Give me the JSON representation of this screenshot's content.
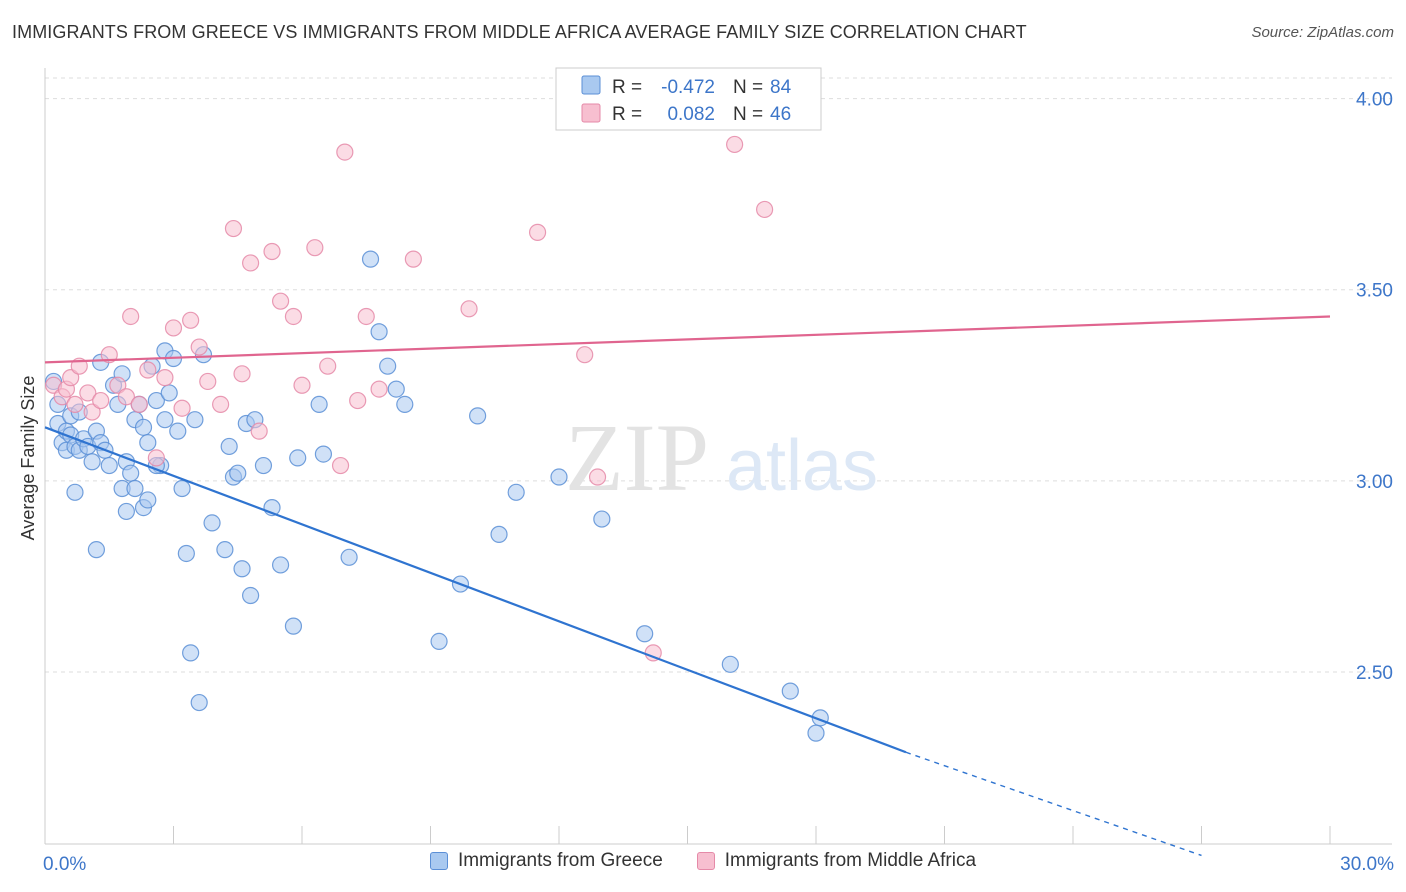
{
  "header": {
    "title": "IMMIGRANTS FROM GREECE VS IMMIGRANTS FROM MIDDLE AFRICA AVERAGE FAMILY SIZE CORRELATION CHART",
    "source": "Source: ZipAtlas.com"
  },
  "watermark": {
    "zip": "ZIP",
    "atlas": "atlas"
  },
  "colors": {
    "blue_fill": "#a9c9f0",
    "blue_stroke": "#5b8fd6",
    "blue_line": "#2f74d0",
    "pink_fill": "#f7bfd0",
    "pink_stroke": "#e58aa8",
    "pink_line": "#e0658f",
    "tick_label": "#3d76c9",
    "grid": "#dddddd"
  },
  "legend_top": {
    "rows": [
      {
        "r_label": "R =",
        "r_value": "-0.472",
        "n_label": "N =",
        "n_value": "84"
      },
      {
        "r_label": "R =",
        "r_value": "0.082",
        "n_label": "N =",
        "n_value": "46"
      }
    ]
  },
  "chart_data": {
    "type": "scatter",
    "title": "IMMIGRANTS FROM GREECE VS IMMIGRANTS FROM MIDDLE AFRICA AVERAGE FAMILY SIZE CORRELATION CHART",
    "xlabel": "",
    "ylabel": "Average Family Size",
    "xlim": [
      0,
      30
    ],
    "ylim": [
      2.05,
      4.08
    ],
    "x_tick_labels": [
      {
        "value": 0,
        "label": "0.0%"
      },
      {
        "value": 30,
        "label": "30.0%"
      }
    ],
    "y_ticks": [
      {
        "value": 2.5,
        "label": "2.50"
      },
      {
        "value": 3.0,
        "label": "3.00"
      },
      {
        "value": 3.5,
        "label": "3.50"
      },
      {
        "value": 4.0,
        "label": "4.00"
      }
    ],
    "grid": true,
    "legend_position": "top-center",
    "series": [
      {
        "name": "Immigrants from Greece",
        "color": "#a9c9f0",
        "R": -0.472,
        "N": 84,
        "trend": {
          "x_start": 0,
          "y_start": 3.14,
          "x_solid_end": 20.1,
          "y_solid_end": 2.29,
          "x_dash_end": 27.0,
          "y_dash_end": 2.02
        },
        "points": [
          [
            0.2,
            3.26
          ],
          [
            0.3,
            3.2
          ],
          [
            0.3,
            3.15
          ],
          [
            0.4,
            3.1
          ],
          [
            0.5,
            3.08
          ],
          [
            0.5,
            3.13
          ],
          [
            0.6,
            3.17
          ],
          [
            0.6,
            3.12
          ],
          [
            0.7,
            3.09
          ],
          [
            0.8,
            3.18
          ],
          [
            0.8,
            3.08
          ],
          [
            0.9,
            3.11
          ],
          [
            1.0,
            3.09
          ],
          [
            1.1,
            3.05
          ],
          [
            1.2,
            3.13
          ],
          [
            1.3,
            3.31
          ],
          [
            1.3,
            3.1
          ],
          [
            1.4,
            3.08
          ],
          [
            1.5,
            3.04
          ],
          [
            1.6,
            3.25
          ],
          [
            1.7,
            3.2
          ],
          [
            1.8,
            3.28
          ],
          [
            1.9,
            3.05
          ],
          [
            2.0,
            3.02
          ],
          [
            2.1,
            3.16
          ],
          [
            2.2,
            3.2
          ],
          [
            2.3,
            3.14
          ],
          [
            2.4,
            3.1
          ],
          [
            2.5,
            3.3
          ],
          [
            2.6,
            3.21
          ],
          [
            2.7,
            3.04
          ],
          [
            2.8,
            3.16
          ],
          [
            0.7,
            2.97
          ],
          [
            1.2,
            2.82
          ],
          [
            1.8,
            2.98
          ],
          [
            1.9,
            2.92
          ],
          [
            2.1,
            2.98
          ],
          [
            2.3,
            2.93
          ],
          [
            2.4,
            2.95
          ],
          [
            2.6,
            3.04
          ],
          [
            2.8,
            3.34
          ],
          [
            2.9,
            3.23
          ],
          [
            3.0,
            3.32
          ],
          [
            3.1,
            3.13
          ],
          [
            3.2,
            2.98
          ],
          [
            3.3,
            2.81
          ],
          [
            3.4,
            2.55
          ],
          [
            3.5,
            3.16
          ],
          [
            3.6,
            2.42
          ],
          [
            3.7,
            3.33
          ],
          [
            3.9,
            2.89
          ],
          [
            4.2,
            2.82
          ],
          [
            4.3,
            3.09
          ],
          [
            4.4,
            3.01
          ],
          [
            4.5,
            3.02
          ],
          [
            4.6,
            2.77
          ],
          [
            4.7,
            3.15
          ],
          [
            4.8,
            2.7
          ],
          [
            4.9,
            3.16
          ],
          [
            5.1,
            3.04
          ],
          [
            5.3,
            2.93
          ],
          [
            5.5,
            2.78
          ],
          [
            5.8,
            2.62
          ],
          [
            5.9,
            3.06
          ],
          [
            6.4,
            3.2
          ],
          [
            6.5,
            3.07
          ],
          [
            7.1,
            2.8
          ],
          [
            7.6,
            3.58
          ],
          [
            7.8,
            3.39
          ],
          [
            8.0,
            3.3
          ],
          [
            8.2,
            3.24
          ],
          [
            8.4,
            3.2
          ],
          [
            9.2,
            2.58
          ],
          [
            9.7,
            2.73
          ],
          [
            10.1,
            3.17
          ],
          [
            10.6,
            2.86
          ],
          [
            11.0,
            2.97
          ],
          [
            12.0,
            3.01
          ],
          [
            13.0,
            2.9
          ],
          [
            14.0,
            2.6
          ],
          [
            16.0,
            2.52
          ],
          [
            17.4,
            2.45
          ],
          [
            18.1,
            2.38
          ],
          [
            18.0,
            2.34
          ]
        ]
      },
      {
        "name": "Immigrants from Middle Africa",
        "color": "#f7bfd0",
        "R": 0.082,
        "N": 46,
        "trend": {
          "x_start": 0,
          "y_start": 3.31,
          "x_end": 30.0,
          "y_end": 3.43
        },
        "points": [
          [
            0.2,
            3.25
          ],
          [
            0.4,
            3.22
          ],
          [
            0.5,
            3.24
          ],
          [
            0.6,
            3.27
          ],
          [
            0.7,
            3.2
          ],
          [
            0.8,
            3.3
          ],
          [
            1.0,
            3.23
          ],
          [
            1.1,
            3.18
          ],
          [
            1.3,
            3.21
          ],
          [
            1.5,
            3.33
          ],
          [
            1.7,
            3.25
          ],
          [
            1.9,
            3.22
          ],
          [
            2.0,
            3.43
          ],
          [
            2.2,
            3.2
          ],
          [
            2.4,
            3.29
          ],
          [
            2.6,
            3.06
          ],
          [
            2.8,
            3.27
          ],
          [
            3.0,
            3.4
          ],
          [
            3.2,
            3.19
          ],
          [
            3.4,
            3.42
          ],
          [
            3.6,
            3.35
          ],
          [
            3.8,
            3.26
          ],
          [
            4.1,
            3.2
          ],
          [
            4.4,
            3.66
          ],
          [
            4.6,
            3.28
          ],
          [
            4.8,
            3.57
          ],
          [
            5.0,
            3.13
          ],
          [
            5.3,
            3.6
          ],
          [
            5.5,
            3.47
          ],
          [
            5.8,
            3.43
          ],
          [
            6.0,
            3.25
          ],
          [
            6.3,
            3.61
          ],
          [
            6.6,
            3.3
          ],
          [
            6.9,
            3.04
          ],
          [
            7.0,
            3.86
          ],
          [
            7.3,
            3.21
          ],
          [
            7.5,
            3.43
          ],
          [
            7.8,
            3.24
          ],
          [
            8.6,
            3.58
          ],
          [
            9.9,
            3.45
          ],
          [
            11.5,
            3.65
          ],
          [
            12.6,
            3.33
          ],
          [
            12.9,
            3.01
          ],
          [
            14.2,
            2.55
          ],
          [
            16.1,
            3.88
          ],
          [
            16.8,
            3.71
          ]
        ]
      }
    ]
  },
  "legend_bottom": [
    {
      "label": "Immigrants from Greece"
    },
    {
      "label": "Immigrants from Middle Africa"
    }
  ]
}
